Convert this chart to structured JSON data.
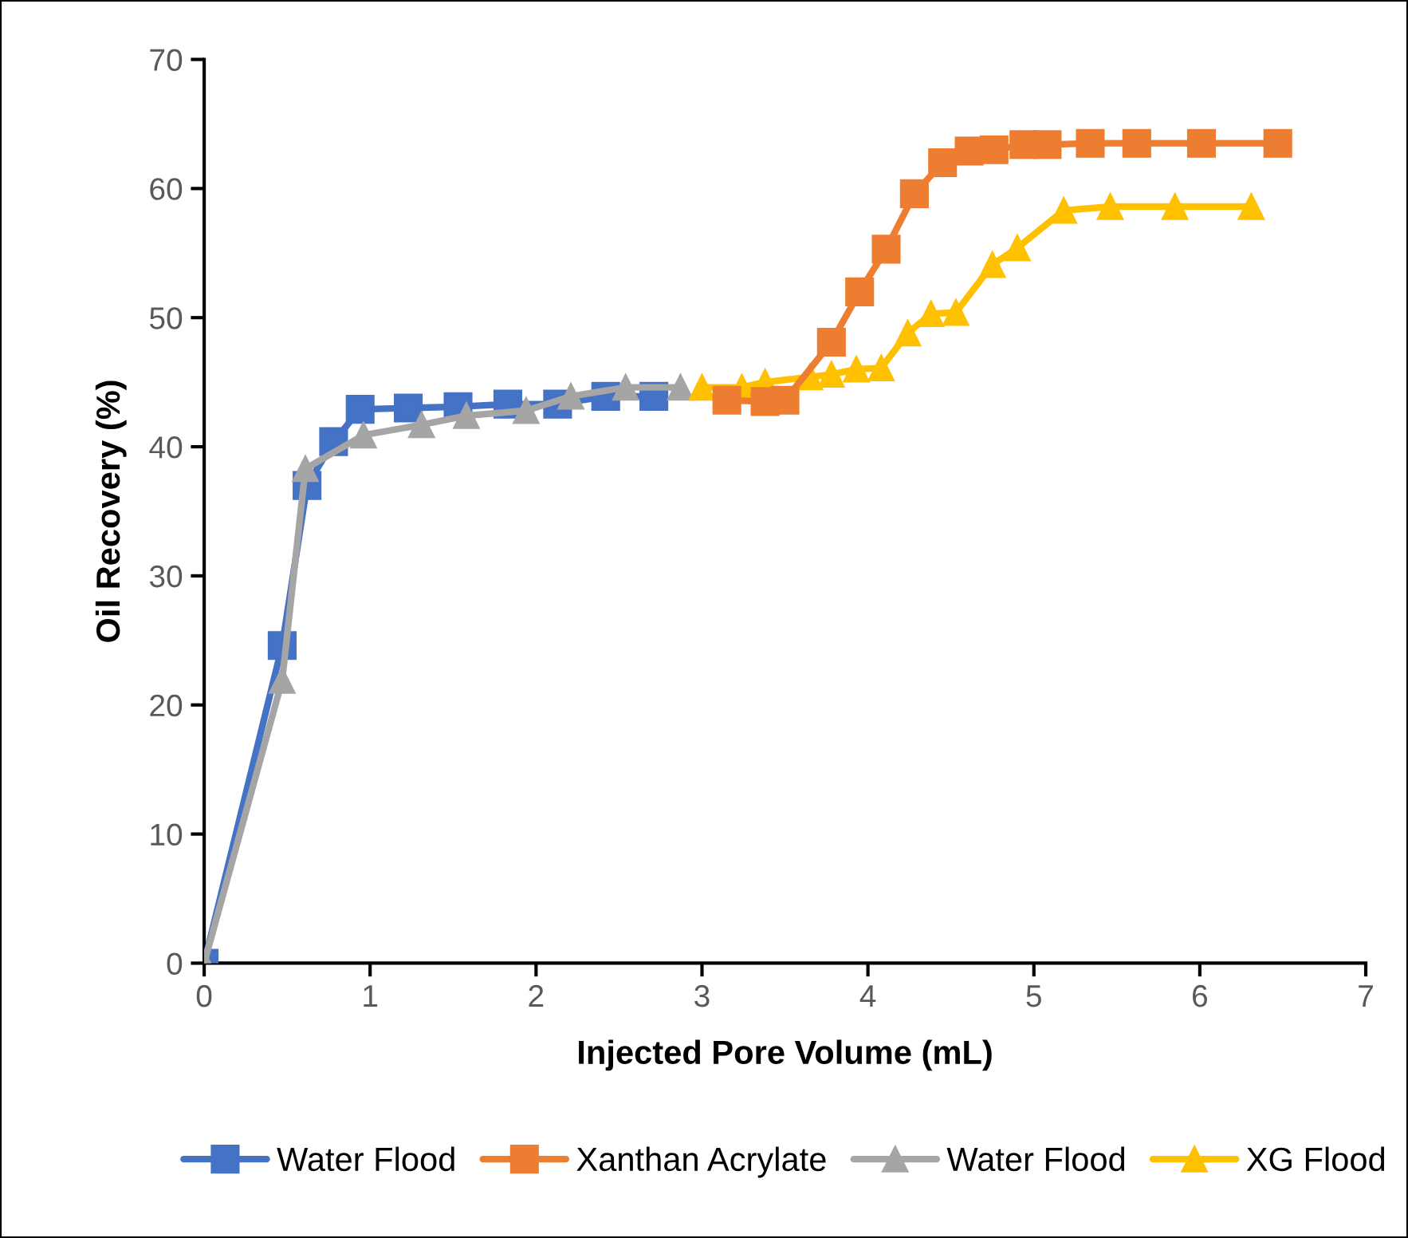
{
  "chart_data": {
    "type": "line",
    "xlabel": "Injected Pore Volume (mL)",
    "ylabel": "Oil Recovery (%)",
    "xlim": [
      0,
      7
    ],
    "xticks": [
      0,
      1,
      2,
      3,
      4,
      5,
      6,
      7
    ],
    "ylim": [
      0,
      70
    ],
    "yticks": [
      0,
      10,
      20,
      30,
      40,
      50,
      60,
      70
    ],
    "grid": false,
    "legend": "bottom",
    "line_style": "solid",
    "series": [
      {
        "name": "Water Flood",
        "color": "#4472c4",
        "marker": "square",
        "x": [
          0,
          0.47,
          0.62,
          0.78,
          0.94,
          1.23,
          1.53,
          1.83,
          2.13,
          2.42,
          2.71
        ],
        "values": [
          0,
          24.6,
          37,
          40.4,
          42.9,
          43,
          43.1,
          43.3,
          43.3,
          43.9,
          43.9
        ]
      },
      {
        "name": "Xanthan Acrylate",
        "color": "#ed7d31",
        "marker": "square",
        "x": [
          3.15,
          3.38,
          3.5,
          3.78,
          3.95,
          4.11,
          4.28,
          4.45,
          4.61,
          4.76,
          4.94,
          5.08,
          5.34,
          5.62,
          6.01,
          6.47
        ],
        "values": [
          43.6,
          43.5,
          43.6,
          48.1,
          52,
          55.3,
          59.6,
          62,
          62.9,
          63,
          63.4,
          63.4,
          63.5,
          63.5,
          63.5,
          63.5
        ]
      },
      {
        "name": "Water Flood",
        "color": "#a5a5a5",
        "marker": "triangle",
        "x": [
          0,
          0.47,
          0.61,
          0.96,
          1.31,
          1.58,
          1.94,
          2.21,
          2.54,
          2.87
        ],
        "values": [
          0,
          21.9,
          38.3,
          40.9,
          41.7,
          42.4,
          42.8,
          43.9,
          44.6,
          44.6
        ]
      },
      {
        "name": "XG Flood",
        "color": "#ffc000",
        "marker": "triangle",
        "x": [
          3.0,
          3.24,
          3.38,
          3.65,
          3.78,
          3.93,
          4.08,
          4.24,
          4.38,
          4.53,
          4.75,
          4.9,
          5.18,
          5.46,
          5.85,
          6.31
        ],
        "values": [
          44.6,
          44.6,
          45,
          45.4,
          45.6,
          46,
          46.1,
          48.8,
          50.3,
          50.4,
          54.1,
          55.4,
          58.3,
          58.6,
          58.6,
          58.6
        ]
      }
    ]
  }
}
